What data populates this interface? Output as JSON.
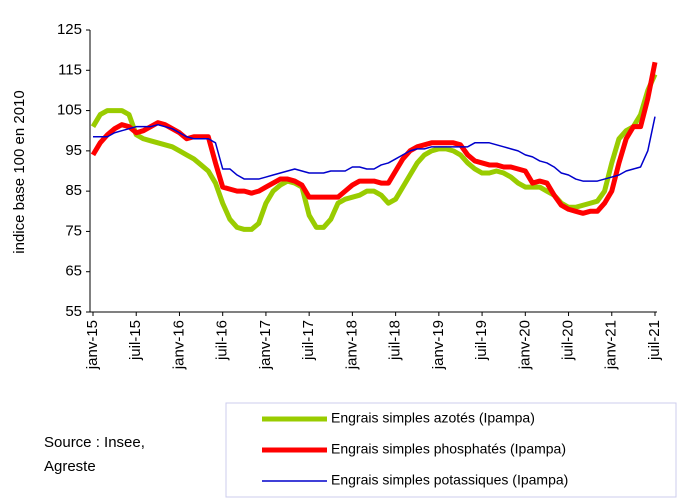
{
  "chart_data": {
    "type": "line",
    "y_label": "indice base 100 en 2010",
    "source": [
      "Source : Insee,",
      "Agreste"
    ],
    "categories": [
      "janv-15",
      null,
      null,
      null,
      null,
      null,
      "juil-15",
      null,
      null,
      null,
      null,
      null,
      "janv-16",
      null,
      null,
      null,
      null,
      null,
      "juil-16",
      null,
      null,
      null,
      null,
      null,
      "janv-17",
      null,
      null,
      null,
      null,
      null,
      "juil-17",
      null,
      null,
      null,
      null,
      null,
      "janv-18",
      null,
      null,
      null,
      null,
      null,
      "juil-18",
      null,
      null,
      null,
      null,
      null,
      "janv-19",
      null,
      null,
      null,
      null,
      null,
      "juil-19",
      null,
      null,
      null,
      null,
      null,
      "janv-20",
      null,
      null,
      null,
      null,
      null,
      "juil-20",
      null,
      null,
      null,
      null,
      null,
      "janv-21",
      null,
      null,
      null,
      null,
      null,
      "juil-21"
    ],
    "series": [
      {
        "name": "Engrais simples azotés (Ipampa)",
        "color": "#99cc00",
        "line_width": 5,
        "values": [
          101,
          104,
          105,
          105,
          105,
          104,
          99,
          98,
          97.5,
          97,
          96.5,
          96,
          95,
          94,
          93,
          91.5,
          90,
          87,
          82,
          78,
          76,
          75.5,
          75.5,
          77,
          82,
          85,
          86.5,
          87.5,
          87,
          86,
          79,
          76,
          76,
          78,
          82,
          83,
          83.5,
          84,
          85,
          85,
          84,
          82,
          83,
          86,
          89,
          92,
          94,
          95,
          95.5,
          95.5,
          95,
          94,
          92,
          90.5,
          89.5,
          89.5,
          90,
          89.5,
          88.5,
          87,
          86,
          86,
          86,
          85,
          84,
          82,
          81,
          81,
          81.5,
          82,
          82.5,
          85,
          92,
          98,
          100,
          101,
          104,
          110,
          114
        ]
      },
      {
        "name": "Engrais simples phosphatés (Ipampa)",
        "color": "#ff0000",
        "line_width": 5,
        "values": [
          94,
          97,
          99,
          100.5,
          101.5,
          101,
          99.5,
          100,
          101,
          102,
          101.5,
          100.5,
          99.5,
          98,
          98.5,
          98.5,
          98.5,
          92,
          86,
          85.5,
          85,
          85,
          84.5,
          85,
          86,
          87,
          88,
          88,
          87.5,
          86.5,
          83.5,
          83.5,
          83.5,
          83.5,
          83.5,
          85,
          86.5,
          87.5,
          87.5,
          87.5,
          87,
          87,
          90,
          93,
          95,
          96,
          96.5,
          97,
          97,
          97,
          97,
          96.5,
          94,
          92.5,
          92,
          91.5,
          91.5,
          91,
          91,
          90.5,
          90,
          87,
          87.5,
          87,
          84,
          81.5,
          80.5,
          80,
          79.5,
          80,
          80,
          82,
          85,
          92,
          98,
          101,
          101,
          108,
          117
        ]
      },
      {
        "name": "Engrais simples potassiques (Ipampa)",
        "color": "#0000cc",
        "line_width": 1.5,
        "values": [
          98.5,
          98.5,
          98.5,
          99.5,
          100,
          100.5,
          101,
          101,
          101,
          101.5,
          101,
          100.5,
          99.5,
          98.5,
          98,
          98,
          98,
          97,
          90.5,
          90.5,
          89,
          88,
          88,
          88,
          88.5,
          89,
          89.5,
          90,
          90.5,
          90,
          89.5,
          89.5,
          89.5,
          90,
          90,
          90,
          91,
          91,
          90.5,
          90.5,
          91.5,
          92,
          93,
          94,
          95,
          95.5,
          95.5,
          96,
          96,
          96,
          96,
          96,
          96,
          97,
          97,
          97,
          96.5,
          96,
          95.5,
          95,
          94,
          93.5,
          92.5,
          92,
          91,
          89.5,
          89,
          88,
          87.5,
          87.5,
          87.5,
          88,
          88.5,
          89,
          90,
          90.5,
          91,
          95,
          103.5
        ]
      }
    ],
    "ylim": [
      55,
      125
    ],
    "yticks": [
      55,
      65,
      75,
      85,
      95,
      105,
      115,
      125
    ],
    "grid": false
  }
}
